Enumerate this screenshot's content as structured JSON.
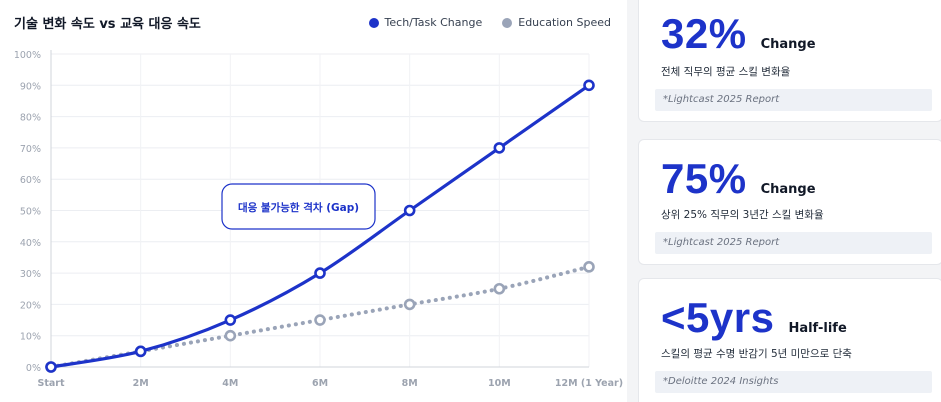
{
  "title": "기술 변화 속도 vs 교육 대응 속도",
  "legend": [
    {
      "label": "Tech/Task Change",
      "color": "#1d33c9"
    },
    {
      "label": "Education Speed",
      "color": "#9aa4b8"
    }
  ],
  "annotation": "대응 불가능한 격차 (Gap)",
  "chart_data": {
    "type": "line",
    "x": [
      "Start",
      "2M",
      "4M",
      "6M",
      "8M",
      "10M",
      "12M (1 Year)"
    ],
    "yticks": [
      "0%",
      "10%",
      "20%",
      "30%",
      "40%",
      "50%",
      "60%",
      "70%",
      "80%",
      "90%",
      "100%"
    ],
    "ylim": [
      0,
      100
    ],
    "series": [
      {
        "name": "Tech/Task Change",
        "values": [
          0,
          5,
          15,
          30,
          50,
          70,
          90
        ],
        "color": "#1d33c9",
        "style": "solid"
      },
      {
        "name": "Education Speed",
        "values": [
          0,
          5,
          10,
          15,
          20,
          25,
          32
        ],
        "color": "#9aa4b8",
        "style": "dotted"
      }
    ],
    "grid": true
  },
  "stats": [
    {
      "value": "32%",
      "unit": "Change",
      "desc": "전체 직무의 평균 스킬 변화율",
      "source": "*Lightcast 2025 Report"
    },
    {
      "value": "75%",
      "unit": "Change",
      "desc": "상위 25% 직무의 3년간 스킬 변화율",
      "source": "*Lightcast 2025 Report"
    },
    {
      "value": "<5yrs",
      "unit": "Half-life",
      "desc": "스킬의 평균 수명 반감기 5년 미만으로 단축",
      "source": "*Deloitte 2024 Insights"
    }
  ]
}
